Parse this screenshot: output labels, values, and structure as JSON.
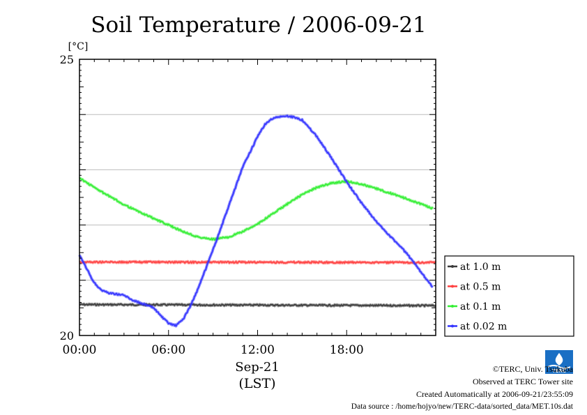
{
  "chart_data": {
    "type": "line",
    "title": "Soil Temperature / 2006-09-21",
    "ylabel": "[°C]",
    "xlabel": "Sep-21",
    "xlabel2": "(LST)",
    "ylim": [
      20,
      25
    ],
    "xlim": [
      0,
      24
    ],
    "y_tick_labels": [
      "25",
      "20"
    ],
    "x_ticks": [
      {
        "value": 0,
        "label": "00:00"
      },
      {
        "value": 6,
        "label": "06:00"
      },
      {
        "value": 12,
        "label": "12:00"
      },
      {
        "value": 18,
        "label": "18:00"
      }
    ],
    "grid_y": [
      21,
      22,
      23,
      24
    ],
    "legend_position": "right",
    "series": [
      {
        "name": "at 1.0 m",
        "color": "#3a3a3a",
        "x": [
          0,
          24
        ],
        "y": [
          20.56,
          20.54
        ]
      },
      {
        "name": "at 0.5 m",
        "color": "#ff4040",
        "x": [
          0,
          24
        ],
        "y": [
          21.33,
          21.32
        ]
      },
      {
        "name": "at 0.1 m",
        "color": "#33ee33",
        "x": [
          0,
          1,
          2,
          3,
          4,
          5,
          6,
          7,
          8,
          9,
          10,
          11,
          12,
          13,
          14,
          15,
          16,
          17,
          18,
          19,
          20,
          21,
          22,
          23,
          23.8
        ],
        "y": [
          22.85,
          22.68,
          22.52,
          22.37,
          22.24,
          22.12,
          22.0,
          21.88,
          21.78,
          21.74,
          21.78,
          21.88,
          22.02,
          22.2,
          22.38,
          22.55,
          22.68,
          22.76,
          22.79,
          22.74,
          22.66,
          22.57,
          22.48,
          22.38,
          22.3
        ]
      },
      {
        "name": "at 0.02 m",
        "color": "#3333ff",
        "x": [
          0,
          0.5,
          1,
          1.5,
          2,
          3,
          3.5,
          4,
          5,
          5.5,
          6,
          6.5,
          7,
          7.5,
          8,
          9,
          10,
          11,
          12,
          12.5,
          13,
          13.5,
          14,
          14.5,
          15,
          16,
          17,
          18,
          19,
          20,
          21,
          22,
          23,
          23.8
        ],
        "y": [
          21.45,
          21.2,
          20.95,
          20.82,
          20.77,
          20.73,
          20.65,
          20.6,
          20.5,
          20.35,
          20.22,
          20.18,
          20.3,
          20.55,
          20.85,
          21.55,
          22.3,
          23.05,
          23.6,
          23.82,
          23.93,
          23.96,
          23.97,
          23.95,
          23.9,
          23.6,
          23.2,
          22.78,
          22.4,
          22.06,
          21.78,
          21.5,
          21.15,
          20.88
        ]
      }
    ]
  },
  "credits": {
    "copyright": "©TERC, Univ. Tsukuba",
    "site": "Observed at TERC Tower site",
    "created": "Created Automatically at 2006-09-21/23:55:09",
    "source": "Data source : /home/hojyo/new/TERC-data/sorted_data/MET.10s.dat"
  },
  "logo": {
    "text": "TERC",
    "icon": "terc-logo-icon",
    "color": "#1a6fc4"
  }
}
